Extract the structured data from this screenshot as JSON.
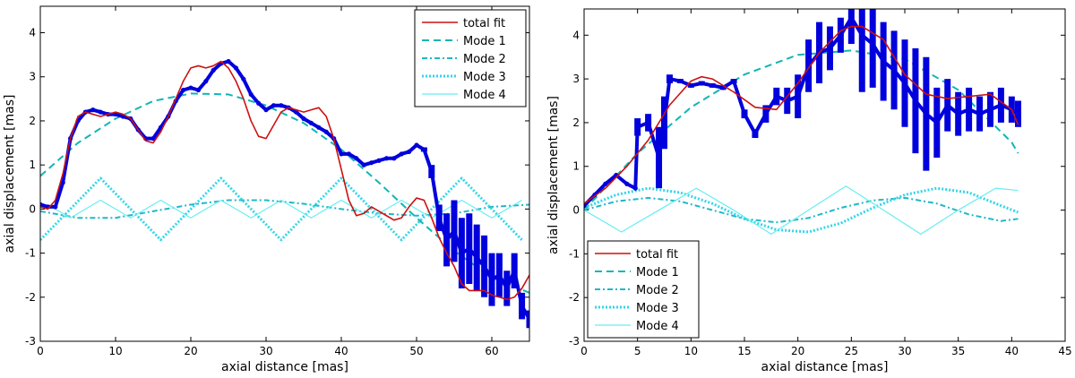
{
  "chart_data": [
    {
      "type": "line",
      "xlabel": "axial distance [mas]",
      "ylabel": "axial displacement [mas]",
      "xlim": [
        0,
        65
      ],
      "ylim": [
        -3,
        4.6
      ],
      "xticks": [
        0,
        10,
        20,
        30,
        40,
        50,
        60
      ],
      "yticks": [
        -3,
        -2,
        -1,
        0,
        1,
        2,
        3,
        4
      ],
      "legend_position": "top-right",
      "colors": {
        "data": "#0000dd",
        "total": "#cc1111",
        "mode1": "#11b5b5",
        "mode2": "#20b8c8",
        "mode3": "#33d6e8",
        "mode4": "#66eef2"
      },
      "legend": [
        "total fit",
        "Mode 1",
        "Mode 2",
        "Mode 3",
        "Mode 4"
      ],
      "series": [
        {
          "name": "data",
          "x": [
            0,
            1,
            2,
            3,
            4,
            5,
            6,
            7,
            8,
            9,
            10,
            11,
            12,
            13,
            14,
            15,
            16,
            17,
            18,
            19,
            20,
            21,
            22,
            23,
            24,
            25,
            26,
            27,
            28,
            29,
            30,
            31,
            32,
            33,
            34,
            35,
            36,
            37,
            38,
            39,
            40,
            41,
            42,
            43,
            44,
            45,
            46,
            47,
            48,
            49,
            50,
            51,
            52,
            53,
            54,
            55,
            56,
            57,
            58,
            59,
            60,
            61,
            62,
            63,
            64,
            65
          ],
          "y": [
            0.1,
            0.05,
            0.05,
            0.6,
            1.6,
            2.0,
            2.2,
            2.25,
            2.2,
            2.15,
            2.15,
            2.1,
            2.05,
            1.8,
            1.6,
            1.6,
            1.85,
            2.1,
            2.45,
            2.7,
            2.75,
            2.7,
            2.9,
            3.15,
            3.3,
            3.35,
            3.2,
            2.95,
            2.6,
            2.4,
            2.25,
            2.35,
            2.35,
            2.3,
            2.2,
            2.05,
            1.95,
            1.85,
            1.75,
            1.6,
            1.25,
            1.25,
            1.15,
            1.0,
            1.05,
            1.1,
            1.15,
            1.15,
            1.25,
            1.3,
            1.45,
            1.35,
            0.85,
            -0.2,
            -0.7,
            -0.5,
            -1.0,
            -0.9,
            -1.1,
            -1.3,
            -1.6,
            -1.5,
            -1.8,
            -1.4,
            -2.2,
            -2.5
          ],
          "err": [
            0,
            0,
            0,
            0,
            0,
            0,
            0,
            0,
            0,
            0,
            0,
            0,
            0,
            0,
            0,
            0,
            0,
            0,
            0,
            0,
            0,
            0,
            0,
            0,
            0,
            0,
            0,
            0,
            0,
            0,
            0,
            0,
            0,
            0,
            0,
            0,
            0,
            0,
            0,
            0,
            0,
            0,
            0,
            0,
            0,
            0,
            0,
            0,
            0,
            0,
            0,
            0.05,
            0.15,
            0.3,
            0.6,
            0.7,
            0.8,
            0.8,
            0.75,
            0.7,
            0.6,
            0.5,
            0.4,
            0.4,
            0.3,
            0.2
          ]
        },
        {
          "name": "total fit",
          "x": [
            0,
            1,
            2,
            3,
            4,
            5,
            6,
            7,
            8,
            9,
            10,
            11,
            12,
            13,
            14,
            15,
            16,
            17,
            18,
            19,
            20,
            21,
            22,
            23,
            24,
            25,
            26,
            27,
            28,
            29,
            30,
            31,
            32,
            33,
            34,
            35,
            36,
            37,
            38,
            39,
            40,
            41,
            42,
            43,
            44,
            45,
            46,
            47,
            48,
            49,
            50,
            51,
            52,
            53,
            54,
            55,
            56,
            57,
            58,
            59,
            60,
            61,
            62,
            63,
            64,
            65
          ],
          "y": [
            0.05,
            0.0,
            0.2,
            0.8,
            1.6,
            2.1,
            2.2,
            2.15,
            2.1,
            2.15,
            2.2,
            2.15,
            2.05,
            1.8,
            1.55,
            1.5,
            1.75,
            2.1,
            2.5,
            2.9,
            3.2,
            3.25,
            3.2,
            3.25,
            3.35,
            3.2,
            2.9,
            2.5,
            2.0,
            1.65,
            1.6,
            1.9,
            2.2,
            2.3,
            2.25,
            2.2,
            2.25,
            2.3,
            2.1,
            1.6,
            0.9,
            0.2,
            -0.15,
            -0.1,
            0.05,
            -0.05,
            -0.15,
            -0.25,
            -0.2,
            0.05,
            0.25,
            0.2,
            -0.2,
            -0.65,
            -1.0,
            -1.3,
            -1.7,
            -1.85,
            -1.85,
            -1.85,
            -1.95,
            -2.0,
            -2.05,
            -2.0,
            -1.8,
            -1.5
          ]
        },
        {
          "name": "Mode 1",
          "x": [
            0,
            5,
            10,
            15,
            20,
            25,
            30,
            35,
            40,
            45,
            50,
            55,
            60,
            65
          ],
          "y": [
            0.75,
            1.5,
            2.05,
            2.45,
            2.62,
            2.6,
            2.35,
            1.95,
            1.35,
            0.6,
            -0.2,
            -0.95,
            -1.55,
            -1.9
          ]
        },
        {
          "name": "Mode 2",
          "x": [
            0,
            5,
            10,
            15,
            20,
            25,
            30,
            35,
            40,
            45,
            50,
            55,
            60,
            65
          ],
          "y": [
            -0.05,
            -0.2,
            -0.2,
            -0.05,
            0.1,
            0.2,
            0.2,
            0.12,
            0.0,
            -0.1,
            -0.15,
            -0.1,
            0.05,
            0.1
          ]
        },
        {
          "name": "Mode 3",
          "x": [
            0,
            4,
            8,
            12,
            16,
            20,
            24,
            28,
            32,
            36,
            40,
            44,
            48,
            52,
            56,
            60,
            64
          ],
          "y": [
            -0.7,
            0.0,
            0.7,
            0.0,
            -0.7,
            0.0,
            0.7,
            0.0,
            -0.7,
            0.0,
            0.7,
            0.0,
            -0.7,
            0.0,
            0.7,
            0.0,
            -0.7
          ]
        },
        {
          "name": "Mode 4",
          "x": [
            0,
            2,
            4,
            6,
            8,
            10,
            12,
            14,
            16,
            18,
            20,
            22,
            24,
            26,
            28,
            30,
            32,
            34,
            36,
            38,
            40,
            42,
            44,
            46,
            48,
            50,
            52,
            54,
            56,
            58,
            60,
            62,
            64
          ],
          "y": [
            0.15,
            0.0,
            -0.2,
            0.0,
            0.2,
            0.0,
            -0.2,
            0.0,
            0.2,
            0.0,
            -0.2,
            0.0,
            0.2,
            0.0,
            -0.2,
            0.0,
            0.2,
            0.0,
            -0.2,
            0.0,
            0.2,
            0.0,
            -0.2,
            0.0,
            0.2,
            0.0,
            -0.2,
            0.0,
            0.2,
            0.0,
            -0.2,
            0.0,
            0.2
          ]
        }
      ]
    },
    {
      "type": "line",
      "xlabel": "axial distance [mas]",
      "ylabel": "axial displacement [mas]",
      "xlim": [
        0,
        45
      ],
      "ylim": [
        -3,
        4.6
      ],
      "xticks": [
        0,
        5,
        10,
        15,
        20,
        25,
        30,
        35,
        40,
        45
      ],
      "yticks": [
        -3,
        -2,
        -1,
        0,
        1,
        2,
        3,
        4
      ],
      "legend_position": "bottom-left",
      "colors": {
        "data": "#0000dd",
        "total": "#cc1111",
        "mode1": "#11b5b5",
        "mode2": "#20b8c8",
        "mode3": "#33d6e8",
        "mode4": "#66eef2"
      },
      "legend": [
        "total fit",
        "Mode 1",
        "Mode 2",
        "Mode 3",
        "Mode 4"
      ],
      "series": [
        {
          "name": "data",
          "x": [
            0,
            1,
            2,
            3,
            4,
            4.8,
            5,
            6,
            7,
            7.5,
            8,
            9,
            10,
            11,
            12,
            13,
            14,
            15,
            16,
            17,
            18,
            19,
            20,
            21,
            22,
            23,
            24,
            25,
            26,
            27,
            28,
            29,
            30,
            31,
            32,
            33,
            34,
            35,
            36,
            37,
            38,
            39,
            40,
            40.6
          ],
          "y": [
            0.1,
            0.35,
            0.6,
            0.8,
            0.6,
            0.5,
            1.9,
            2.0,
            1.2,
            2.0,
            3.0,
            2.95,
            2.85,
            2.9,
            2.85,
            2.8,
            2.95,
            2.2,
            1.75,
            2.2,
            2.6,
            2.5,
            2.6,
            3.3,
            3.6,
            3.7,
            4.0,
            4.4,
            4.0,
            3.8,
            3.4,
            3.2,
            2.9,
            2.5,
            2.2,
            2.0,
            2.4,
            2.2,
            2.3,
            2.2,
            2.3,
            2.4,
            2.3,
            2.2
          ],
          "err": [
            0,
            0,
            0,
            0,
            0,
            0,
            0.2,
            0.2,
            0.7,
            0.6,
            0.1,
            0.05,
            0.05,
            0.05,
            0.05,
            0.05,
            0.05,
            0.1,
            0.1,
            0.2,
            0.2,
            0.3,
            0.5,
            0.6,
            0.7,
            0.5,
            0.4,
            0.6,
            1.3,
            1.0,
            0.9,
            0.9,
            1.0,
            1.2,
            1.3,
            0.8,
            0.6,
            0.5,
            0.5,
            0.4,
            0.4,
            0.4,
            0.3,
            0.3
          ]
        },
        {
          "name": "total fit",
          "x": [
            0,
            2,
            4,
            6,
            8,
            10,
            11,
            12,
            14,
            16,
            18,
            20,
            22,
            24,
            25,
            26,
            28,
            30,
            32,
            34,
            36,
            38,
            40,
            40.6
          ],
          "y": [
            0.15,
            0.5,
            1.0,
            1.6,
            2.4,
            2.95,
            3.05,
            3.0,
            2.7,
            2.35,
            2.3,
            2.9,
            3.6,
            4.1,
            4.2,
            4.2,
            3.9,
            3.1,
            2.65,
            2.55,
            2.6,
            2.65,
            2.3,
            1.95
          ]
        },
        {
          "name": "Mode 1",
          "x": [
            0,
            5,
            10,
            15,
            20,
            25,
            30,
            35,
            40,
            40.6
          ],
          "y": [
            0.0,
            1.3,
            2.35,
            3.1,
            3.55,
            3.65,
            3.45,
            2.75,
            1.55,
            1.3
          ]
        },
        {
          "name": "Mode 2",
          "x": [
            0,
            3,
            6,
            9,
            12,
            15,
            18,
            21,
            24,
            27,
            30,
            33,
            36,
            39,
            40.6
          ],
          "y": [
            0.0,
            0.2,
            0.28,
            0.2,
            0.0,
            -0.2,
            -0.28,
            -0.18,
            0.05,
            0.22,
            0.28,
            0.15,
            -0.1,
            -0.25,
            -0.2
          ]
        },
        {
          "name": "Mode 3",
          "x": [
            0,
            3,
            6,
            9,
            12,
            15,
            18,
            21,
            24,
            27,
            30,
            33,
            36,
            39,
            40.6
          ],
          "y": [
            0.05,
            0.35,
            0.5,
            0.4,
            0.15,
            -0.2,
            -0.45,
            -0.5,
            -0.3,
            0.05,
            0.35,
            0.5,
            0.4,
            0.1,
            -0.05
          ]
        },
        {
          "name": "Mode 4",
          "x": [
            0,
            3.5,
            7,
            10.5,
            14,
            17.5,
            21,
            24.5,
            28,
            31.5,
            35,
            38.5,
            40.6
          ],
          "y": [
            0.0,
            -0.5,
            0.0,
            0.5,
            0.0,
            -0.55,
            0.0,
            0.55,
            0.0,
            -0.55,
            0.0,
            0.5,
            0.45
          ]
        }
      ]
    }
  ]
}
